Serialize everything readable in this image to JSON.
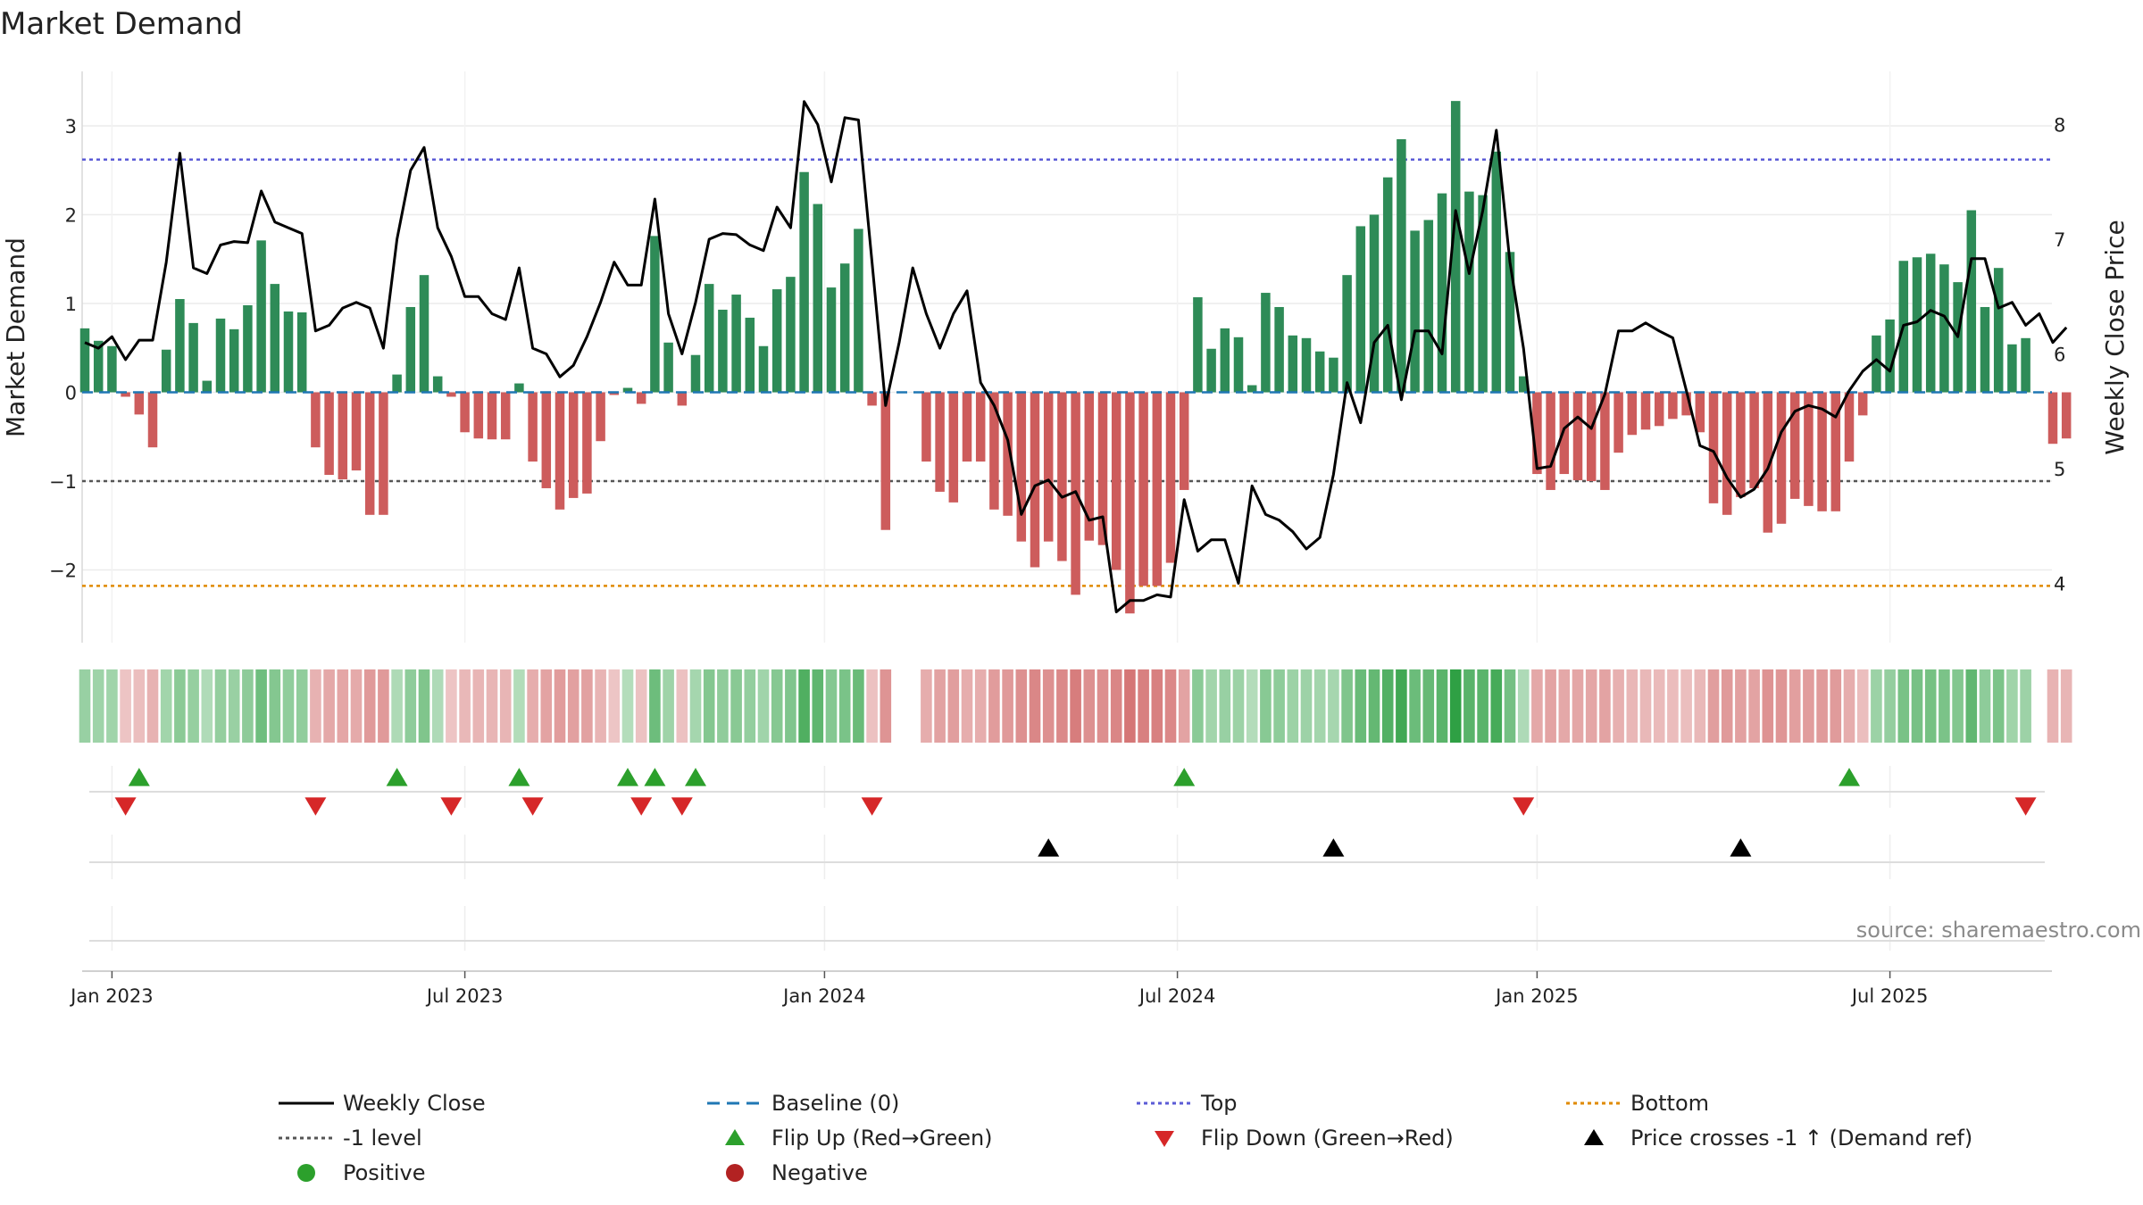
{
  "chart_data": {
    "type": "bar",
    "title": "Market Demand",
    "ylabel": "Market Demand",
    "ylabel_right": "Weekly Close Price",
    "xlabel": "",
    "ylim": [
      -2.75,
      3.6
    ],
    "ylim_right": [
      3.5,
      8.25
    ],
    "yticks": [
      -2,
      -1,
      0,
      1,
      2,
      3
    ],
    "yticks_right": [
      4,
      5,
      6,
      7,
      8
    ],
    "xticks": [
      "Jan 2023",
      "Jul 2023",
      "Jan 2024",
      "Jul 2024",
      "Jan 2025",
      "Jul 2025"
    ],
    "xtick_weeks": [
      2,
      28,
      54.5,
      80.5,
      107,
      133
    ],
    "n_weeks": 145,
    "source_text": "source: sharemaestro.com",
    "reference_lines": {
      "top": 2.62,
      "minus_one": -1.0,
      "bottom": -2.18,
      "baseline": 0
    },
    "colors": {
      "positive": "#2e8b57",
      "negative": "#cd5c5c",
      "price": "#000000",
      "baseline": "#1f77b4",
      "top": "#5b5bd6",
      "minus_one": "#555555",
      "bottom": "#e08a00",
      "flip_up": "#2ca02c",
      "flip_down": "#d62728",
      "cross": "#000000",
      "positive_dot": "#2ca02c",
      "negative_dot": "#b22222"
    },
    "demand": [
      0.72,
      0.58,
      0.52,
      -0.05,
      -0.25,
      -0.62,
      0.48,
      1.05,
      0.78,
      0.13,
      0.83,
      0.71,
      0.98,
      1.71,
      1.22,
      0.91,
      0.9,
      -0.62,
      -0.93,
      -0.98,
      -0.88,
      -1.38,
      -1.38,
      0.2,
      0.96,
      1.32,
      0.18,
      -0.05,
      -0.45,
      -0.52,
      -0.53,
      -0.53,
      0.1,
      -0.78,
      -1.08,
      -1.32,
      -1.19,
      -1.14,
      -0.55,
      -0.03,
      0.05,
      -0.13,
      1.76,
      0.56,
      -0.15,
      0.42,
      1.22,
      0.93,
      1.1,
      0.84,
      0.52,
      1.16,
      1.3,
      2.48,
      2.12,
      1.18,
      1.45,
      1.84,
      -0.15,
      -1.55,
      0,
      0,
      -0.78,
      -1.12,
      -1.24,
      -0.78,
      -0.78,
      -1.32,
      -1.39,
      -1.68,
      -1.97,
      -1.68,
      -1.9,
      -2.28,
      -1.67,
      -1.72,
      -2.0,
      -2.49,
      -2.18,
      -2.18,
      -1.92,
      -1.1,
      1.07,
      0.49,
      0.72,
      0.62,
      0.08,
      1.12,
      0.96,
      0.64,
      0.61,
      0.46,
      0.39,
      1.32,
      1.87,
      2.0,
      2.42,
      2.85,
      1.82,
      1.94,
      2.24,
      3.28,
      2.26,
      2.22,
      2.71,
      1.58,
      0.18,
      -0.92,
      -1.1,
      -0.92,
      -0.99,
      -1.0,
      -1.1,
      -0.68,
      -0.48,
      -0.42,
      -0.38,
      -0.3,
      -0.26,
      -0.45,
      -1.25,
      -1.38,
      -1.18,
      -1.08,
      -1.58,
      -1.48,
      -1.2,
      -1.28,
      -1.34,
      -1.34,
      -0.78,
      -0.26,
      0.64,
      0.82,
      1.48,
      1.52,
      1.56,
      1.44,
      1.24,
      2.05,
      0.96,
      1.4,
      0.54,
      0.61,
      0,
      -0.58,
      -0.52
    ],
    "price": [
      6.1,
      6.05,
      6.15,
      5.95,
      6.12,
      6.12,
      6.8,
      7.75,
      6.75,
      6.7,
      6.95,
      6.98,
      6.97,
      7.42,
      7.15,
      7.1,
      7.05,
      6.2,
      6.25,
      6.4,
      6.45,
      6.4,
      6.05,
      7.0,
      7.6,
      7.8,
      7.1,
      6.85,
      6.5,
      6.5,
      6.35,
      6.3,
      6.75,
      6.05,
      6.0,
      5.8,
      5.9,
      6.15,
      6.45,
      6.8,
      6.6,
      6.6,
      7.35,
      6.35,
      6.0,
      6.45,
      7.0,
      7.05,
      7.04,
      6.95,
      6.9,
      7.28,
      7.1,
      8.2,
      8.0,
      7.5,
      8.06,
      8.04,
      6.8,
      5.55,
      6.1,
      6.75,
      6.35,
      6.05,
      6.35,
      6.55,
      5.75,
      5.55,
      5.25,
      4.6,
      4.85,
      4.9,
      4.75,
      4.8,
      4.55,
      4.58,
      3.75,
      3.85,
      3.85,
      3.9,
      3.88,
      4.73,
      4.28,
      4.38,
      4.38,
      4.0,
      4.85,
      4.6,
      4.55,
      4.45,
      4.3,
      4.4,
      4.95,
      5.75,
      5.4,
      6.1,
      6.25,
      5.6,
      6.2,
      6.2,
      6.0,
      7.25,
      6.7,
      7.25,
      7.95,
      6.8,
      6.05,
      5.0,
      5.02,
      5.35,
      5.45,
      5.35,
      5.65,
      6.2,
      6.2,
      6.27,
      6.2,
      6.14,
      5.68,
      5.2,
      5.15,
      4.92,
      4.75,
      4.82,
      5.0,
      5.32,
      5.5,
      5.55,
      5.52,
      5.45,
      5.68,
      5.85,
      5.95,
      5.85,
      6.25,
      6.28,
      6.38,
      6.33,
      6.15,
      6.83,
      6.83,
      6.4,
      6.45,
      6.25,
      6.35,
      6.1,
      6.23
    ],
    "flip_up_weeks": [
      4,
      23,
      32,
      40,
      42,
      45,
      81,
      130
    ],
    "flip_down_weeks": [
      3,
      17,
      27,
      33,
      41,
      44,
      58,
      106,
      143
    ],
    "cross_weeks": [
      71,
      92,
      122
    ],
    "legend": [
      {
        "label": "Weekly Close",
        "kind": "line"
      },
      {
        "label": "Baseline (0)",
        "kind": "dash"
      },
      {
        "label": "Top",
        "kind": "dot"
      },
      {
        "label": "Bottom",
        "kind": "dot"
      },
      {
        "label": "-1 level",
        "kind": "dot"
      },
      {
        "label": "Flip Up (Red→Green)",
        "kind": "tri-up"
      },
      {
        "label": "Flip Down (Green→Red)",
        "kind": "tri-down"
      },
      {
        "label": "Price crosses -1 ↑ (Demand ref)",
        "kind": "tri-up"
      },
      {
        "label": "Positive",
        "kind": "circle"
      },
      {
        "label": "Negative",
        "kind": "circle"
      }
    ]
  }
}
